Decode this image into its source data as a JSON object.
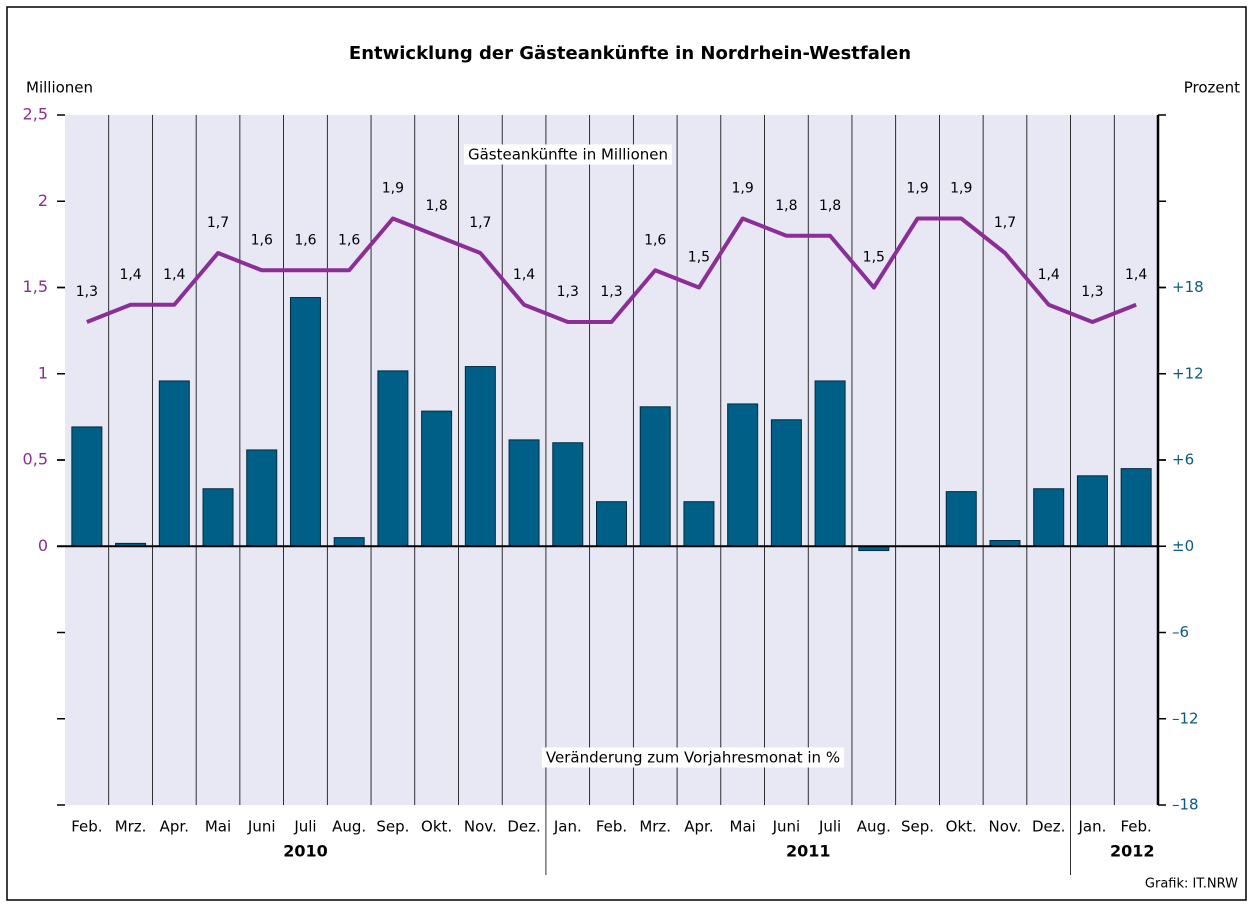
{
  "chart_data": {
    "type": "bar_line",
    "title": "Entwicklung der Gästeankünfte in Nordrhein-Westfalen",
    "y_label": "Millionen",
    "y2_label": "Prozent",
    "source": "Grafik: IT.NRW",
    "groups": [
      {
        "label": "2010",
        "categories": [
          "Feb.",
          "Mrz.",
          "Apr.",
          "Mai",
          "Juni",
          "Juli",
          "Aug.",
          "Sep.",
          "Okt.",
          "Nov.",
          "Dez."
        ]
      },
      {
        "label": "2011",
        "categories": [
          "Jan.",
          "Feb.",
          "Mrz.",
          "Apr.",
          "Mai",
          "Juni",
          "Juli",
          "Aug.",
          "Sep.",
          "Okt.",
          "Nov.",
          "Dez."
        ]
      },
      {
        "label": "2012",
        "categories": [
          "Jan.",
          "Feb."
        ]
      }
    ],
    "ylim": [
      -1.5,
      2.5
    ],
    "yticks": [
      0,
      {
        "value": 0.5,
        "label": "0,5"
      },
      1,
      {
        "value": 1.5,
        "label": "1,5"
      },
      2,
      {
        "value": 2.5,
        "label": "2,5"
      }
    ],
    "y2lim": [
      -18,
      30
    ],
    "y2ticks": [
      {
        "value": -18,
        "label": "–18"
      },
      {
        "value": -12,
        "label": "–12"
      },
      {
        "value": -6,
        "label": "–6"
      },
      {
        "value": 0,
        "label": "±0"
      },
      {
        "value": 6,
        "label": "+6"
      },
      {
        "value": 12,
        "label": "+12"
      },
      {
        "value": 18,
        "label": "+18"
      }
    ],
    "series": [
      {
        "name": "Veränderung zum Vorjahresmonat in %",
        "type": "bar",
        "axis": "y2",
        "color": "#005f87",
        "values": [
          8.3,
          0.2,
          11.5,
          4.0,
          6.7,
          17.3,
          0.6,
          12.2,
          9.4,
          12.5,
          7.4,
          7.2,
          3.1,
          9.7,
          3.1,
          9.9,
          8.8,
          11.5,
          -0.3,
          0,
          3.8,
          0.4,
          4.0,
          4.9,
          5.4
        ]
      },
      {
        "name": "Gästeankünfte in Millionen",
        "type": "line",
        "axis": "y",
        "color": "#8b2f97",
        "values": [
          1.3,
          1.4,
          1.4,
          1.7,
          1.6,
          1.6,
          1.6,
          1.9,
          1.8,
          1.7,
          1.4,
          1.3,
          1.3,
          1.6,
          1.5,
          1.9,
          1.8,
          1.8,
          1.5,
          1.9,
          1.9,
          1.7,
          1.4,
          1.3,
          1.4
        ],
        "value_labels": [
          "1,3",
          "1,4",
          "1,4",
          "1,7",
          "1,6",
          "1,6",
          "1,6",
          "1,9",
          "1,8",
          "1,7",
          "1,4",
          "1,3",
          "1,3",
          "1,6",
          "1,5",
          "1,9",
          "1,8",
          "1,8",
          "1,5",
          "1,9",
          "1,9",
          "1,7",
          "1,4",
          "1,3",
          "1,4"
        ]
      }
    ]
  }
}
